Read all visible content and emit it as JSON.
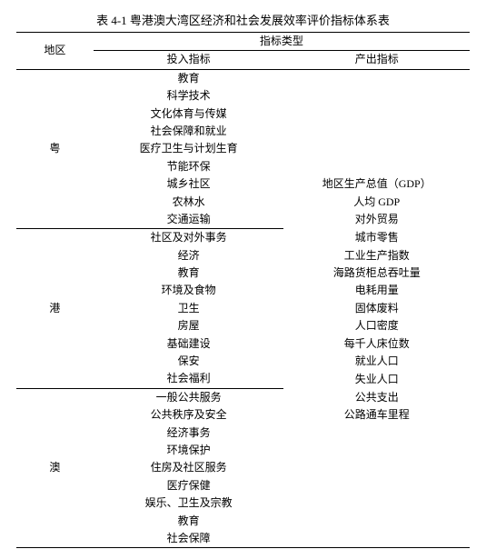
{
  "title": "表 4-1  粤港澳大湾区经济和社会发展效率评价指标体系表",
  "header": {
    "region": "地区",
    "indicator_type": "指标类型",
    "input": "投入指标",
    "output": "产出指标"
  },
  "regions": [
    {
      "name": "粤",
      "inputs": [
        "教育",
        "科学技术",
        "文化体育与传媒",
        "社会保障和就业",
        "医疗卫生与计划生育",
        "节能环保",
        "城乡社区",
        "农林水",
        "交通运输"
      ]
    },
    {
      "name": "港",
      "inputs": [
        "社区及对外事务",
        "经济",
        "教育",
        "环境及食物",
        "卫生",
        "房屋",
        "基础建设",
        "保安",
        "社会福利"
      ]
    },
    {
      "name": "澳",
      "inputs": [
        "一般公共服务",
        "公共秩序及安全",
        "经济事务",
        "环境保护",
        "住房及社区服务",
        "医疗保健",
        "娱乐、卫生及宗教",
        "教育",
        "社会保障"
      ]
    }
  ],
  "outputs": [
    "地区生产总值（GDP）",
    "人均 GDP",
    "对外贸易",
    "城市零售",
    "工业生产指数",
    "海路货柜总吞吐量",
    "电耗用量",
    "固体废料",
    "人口密度",
    "每千人床位数",
    "就业人口",
    "失业人口",
    "公共支出",
    "公路通车里程"
  ],
  "style": {
    "border_color": "#000000",
    "font_family": "SimSun",
    "font_size_body": 12,
    "font_size_title": 13,
    "background": "#ffffff",
    "text_color": "#000000"
  }
}
